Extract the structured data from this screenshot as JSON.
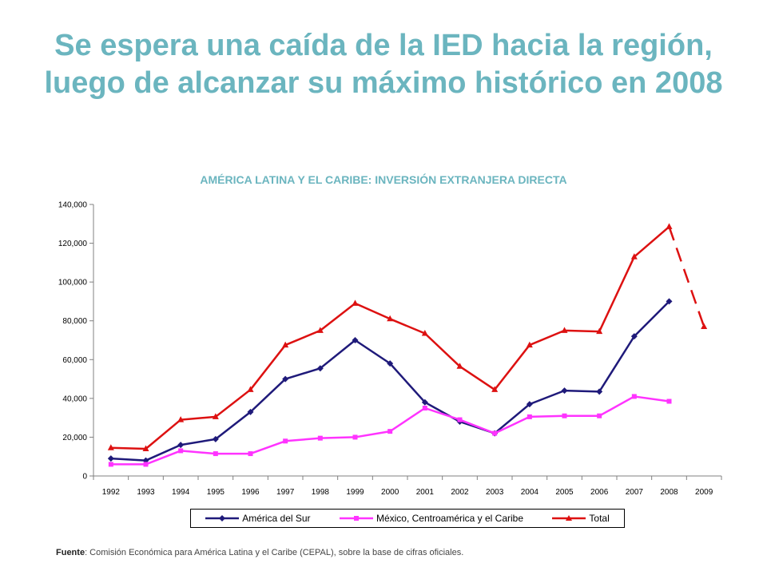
{
  "title": "Se espera una caída de la IED hacia la región, luego de alcanzar su máximo histórico en 2008",
  "source": {
    "label": "Fuente",
    "text": ": Comisión Económica para América Latina y el Caribe (CEPAL),  sobre la base de cifras oficiales."
  },
  "chart_data": {
    "type": "line",
    "title": "AMÉRICA LATINA Y EL CARIBE: INVERSIÓN EXTRANJERA DIRECTA",
    "xlabel": "",
    "ylabel": "",
    "categories": [
      "1992",
      "1993",
      "1994",
      "1995",
      "1996",
      "1997",
      "1998",
      "1999",
      "2000",
      "2001",
      "2002",
      "2003",
      "2004",
      "2005",
      "2006",
      "2007",
      "2008",
      "2009"
    ],
    "ylim": [
      0,
      140000
    ],
    "yticks": [
      0,
      20000,
      40000,
      60000,
      80000,
      100000,
      120000,
      140000
    ],
    "ytick_labels": [
      "0",
      "20,000",
      "40,000",
      "60,000",
      "80,000",
      "100,000",
      "120,000",
      "140,000"
    ],
    "legend_position": "bottom",
    "series": [
      {
        "name": "América del Sur",
        "color": "#1f1a7a",
        "marker": "diamond",
        "values": [
          9000,
          8000,
          16000,
          19000,
          33000,
          50000,
          55500,
          70000,
          58000,
          38000,
          28000,
          22000,
          37000,
          44000,
          43500,
          72000,
          90000,
          null
        ]
      },
      {
        "name": "México, Centroamérica y el Caribe",
        "color": "#ff33ff",
        "marker": "square",
        "values": [
          6000,
          6000,
          13000,
          11500,
          11500,
          18000,
          19500,
          20000,
          23000,
          35000,
          29000,
          22000,
          30500,
          31000,
          31000,
          41000,
          38500,
          null
        ]
      },
      {
        "name": "Total",
        "color": "#dd1111",
        "marker": "triangle",
        "values": [
          14500,
          14000,
          29000,
          30500,
          44500,
          67500,
          75000,
          89000,
          81000,
          73500,
          56500,
          44500,
          67500,
          75000,
          74500,
          113000,
          128500,
          77000
        ],
        "dashed_from_index": 16
      }
    ]
  }
}
